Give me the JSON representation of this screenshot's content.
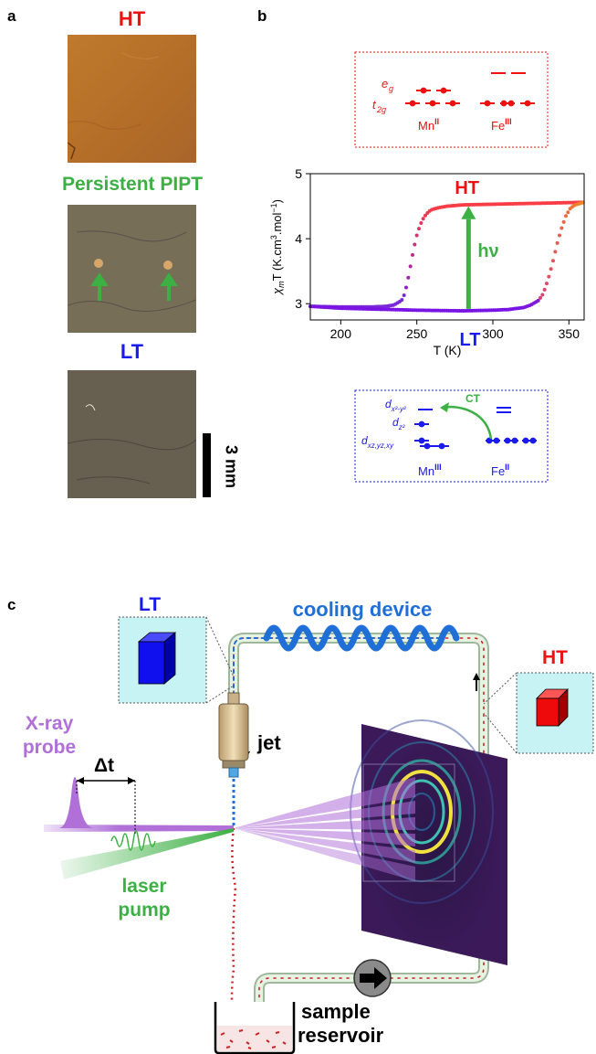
{
  "panel_a": {
    "letter": "a",
    "titles": {
      "ht": "HT",
      "pipt": "Persistent PIPT",
      "lt": "LT"
    },
    "scale_bar": "3 mm"
  },
  "panel_b": {
    "letter": "b",
    "ht_box": {
      "orbital_eg": "e",
      "orbital_eg_sub": "g",
      "orbital_t2g": "t",
      "orbital_t2g_sub": "2g",
      "ion_left": "Mn",
      "ion_left_ox": "II",
      "ion_right": "Fe",
      "ion_right_ox": "III"
    },
    "lt_box": {
      "orbital_1": "d",
      "orbital_1_sub": "x²-y²",
      "orbital_2": "d",
      "orbital_2_sub": "z²",
      "orbital_3": "d",
      "orbital_3_sub": "xz,yz,xy",
      "transfer": "CT",
      "ion_left": "Mn",
      "ion_left_ox": "III",
      "ion_right": "Fe",
      "ion_right_ox": "II"
    },
    "colors": {
      "ht": "#ee1111",
      "lt": "#1a1aee",
      "photo": "#3cb043"
    }
  },
  "chart_data": {
    "type": "line",
    "xlabel": "T (K)",
    "ylabel": "χmT (K.cm³.mol⁻¹)",
    "ylabel_parts": {
      "chi": "χ",
      "chi_sub": "m",
      "rest": "T (K.cm",
      "cube": "3",
      "mid": ".mol",
      "neg": "−1",
      "close": ")"
    },
    "xlim": [
      180,
      360
    ],
    "ylim": [
      2.75,
      5.0
    ],
    "xticks": [
      200,
      250,
      300,
      350
    ],
    "yticks": [
      3,
      4,
      5
    ],
    "annotations": {
      "upper": "HT",
      "lower": "LT",
      "arrow": "hν"
    },
    "series": [
      {
        "x": [
          180,
          200,
          220,
          230,
          235,
          240,
          242,
          244,
          246,
          248,
          250,
          252,
          254,
          256,
          258,
          260,
          265,
          270,
          280,
          300,
          320,
          340,
          360
        ],
        "y": [
          2.96,
          2.95,
          2.95,
          2.96,
          2.98,
          3.05,
          3.15,
          3.35,
          3.6,
          3.85,
          4.05,
          4.2,
          4.3,
          4.37,
          4.42,
          4.45,
          4.48,
          4.5,
          4.52,
          4.53,
          4.54,
          4.55,
          4.56
        ]
      },
      {
        "x": [
          180,
          200,
          250,
          280,
          300,
          310,
          320,
          325,
          330,
          333,
          336,
          339,
          342,
          345,
          348,
          351,
          354,
          360
        ],
        "y": [
          2.96,
          2.93,
          2.9,
          2.89,
          2.9,
          2.91,
          2.94,
          2.98,
          3.05,
          3.15,
          3.35,
          3.6,
          3.9,
          4.15,
          4.35,
          4.47,
          4.52,
          4.56
        ]
      }
    ]
  },
  "panel_c": {
    "letter": "c",
    "labels": {
      "lt": "LT",
      "ht": "HT",
      "cooling": "cooling device",
      "jet": "jet",
      "xray_1": "X-ray",
      "xray_2": "probe",
      "delay": "Δt",
      "laser_1": "laser",
      "laser_2": "pump",
      "reservoir_1": "sample",
      "reservoir_2": "reservoir"
    },
    "colors": {
      "xray": "#b070d8",
      "laser": "#3cb043",
      "cooling": "#1f6fd6",
      "lt_cube": "#1010ee",
      "ht_cube": "#ee0a0a",
      "inset_bg": "#c8f3f5",
      "detector": "#3c1a5a"
    }
  }
}
